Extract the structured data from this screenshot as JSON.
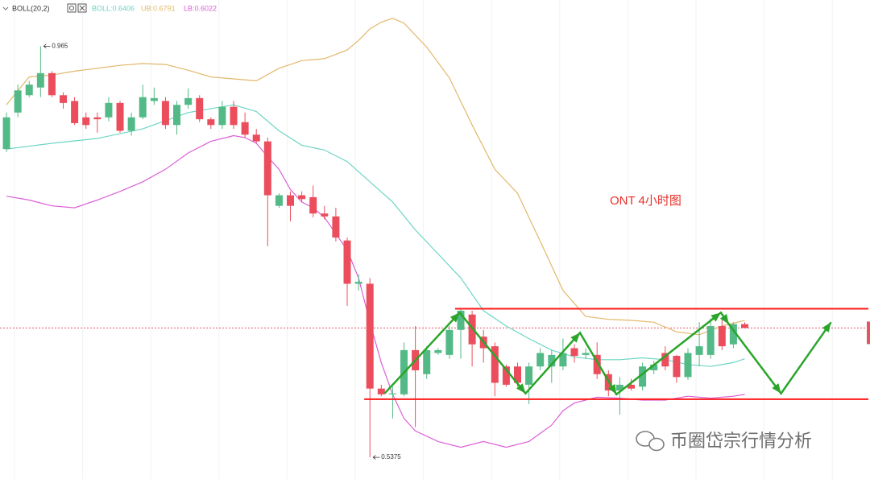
{
  "chart_data": {
    "type": "candlestick",
    "title": "ONT 4小时图",
    "indicator": "BOLL(20,2)",
    "watermark": "币圈岱宗行情分析",
    "xlim": [
      -0.57,
      76.03
    ],
    "ylim": [
      0.515,
      1.013
    ],
    "up_color": "#53b987",
    "down_color": "#eb4d5c",
    "open": [
      0.858,
      0.896,
      0.914,
      0.922,
      0.937,
      0.914,
      0.908,
      0.891,
      0.891,
      0.891,
      0.906,
      0.877,
      0.891,
      0.908,
      0.908,
      0.883,
      0.904,
      0.911,
      0.889,
      0.883,
      0.902,
      0.886,
      0.873,
      0.866,
      0.799,
      0.81,
      0.81,
      0.808,
      0.791,
      0.788,
      0.763,
      0.718,
      0.718,
      0.609,
      0.603,
      0.603,
      0.649,
      0.624,
      0.646,
      0.644,
      0.67,
      0.686,
      0.663,
      0.653,
      0.632,
      0.632,
      0.613,
      0.632,
      0.632,
      0.632,
      0.651,
      0.644,
      0.644,
      0.624,
      0.607,
      0.613,
      0.611,
      0.628,
      0.646,
      0.643,
      0.621,
      0.644,
      0.644,
      0.674,
      0.655,
      0.676
    ],
    "high": [
      0.896,
      0.925,
      0.929,
      0.965,
      0.939,
      0.917,
      0.912,
      0.896,
      0.896,
      0.912,
      0.908,
      0.896,
      0.925,
      0.922,
      0.912,
      0.908,
      0.921,
      0.914,
      0.891,
      0.908,
      0.908,
      0.896,
      0.879,
      0.87,
      0.812,
      0.814,
      0.814,
      0.82,
      0.799,
      0.797,
      0.766,
      0.728,
      0.724,
      0.613,
      0.611,
      0.657,
      0.674,
      0.653,
      0.651,
      0.674,
      0.693,
      0.69,
      0.67,
      0.657,
      0.634,
      0.636,
      0.636,
      0.651,
      0.649,
      0.661,
      0.655,
      0.651,
      0.657,
      0.628,
      0.621,
      0.619,
      0.636,
      0.638,
      0.653,
      0.644,
      0.651,
      0.678,
      0.682,
      0.682,
      0.678,
      0.678
    ],
    "low": [
      0.855,
      0.891,
      0.912,
      0.912,
      0.912,
      0.9,
      0.883,
      0.879,
      0.875,
      0.887,
      0.875,
      0.872,
      0.889,
      0.904,
      0.879,
      0.873,
      0.9,
      0.886,
      0.879,
      0.879,
      0.879,
      0.87,
      0.864,
      0.757,
      0.797,
      0.783,
      0.803,
      0.787,
      0.785,
      0.762,
      0.695,
      0.711,
      0.5375,
      0.601,
      0.578,
      0.601,
      0.569,
      0.619,
      0.644,
      0.64,
      0.64,
      0.632,
      0.636,
      0.601,
      0.611,
      0.611,
      0.593,
      0.628,
      0.615,
      0.628,
      0.636,
      0.64,
      0.619,
      0.601,
      0.582,
      0.607,
      0.607,
      0.624,
      0.628,
      0.615,
      0.618,
      0.632,
      0.64,
      0.649,
      0.651,
      0.672
    ],
    "close": [
      0.891,
      0.919,
      0.925,
      0.937,
      0.914,
      0.906,
      0.885,
      0.883,
      0.889,
      0.906,
      0.877,
      0.891,
      0.912,
      0.911,
      0.883,
      0.904,
      0.911,
      0.889,
      0.883,
      0.902,
      0.883,
      0.873,
      0.866,
      0.81,
      0.81,
      0.799,
      0.806,
      0.791,
      0.788,
      0.766,
      0.718,
      0.72,
      0.609,
      0.603,
      0.604,
      0.649,
      0.628,
      0.649,
      0.649,
      0.67,
      0.69,
      0.655,
      0.651,
      0.615,
      0.613,
      0.615,
      0.632,
      0.646,
      0.644,
      0.646,
      0.643,
      0.646,
      0.624,
      0.607,
      0.613,
      0.609,
      0.632,
      0.634,
      0.632,
      0.621,
      0.646,
      0.653,
      0.674,
      0.653,
      0.676,
      0.672
    ],
    "bands": [
      {
        "name": "BOLL:0.6406",
        "color": "#6dd5c4",
        "x": [
          0,
          4,
          8,
          12,
          16,
          20,
          22,
          24,
          26,
          28,
          30,
          32,
          34,
          36,
          38,
          40,
          42,
          44,
          46,
          48,
          50,
          52,
          54,
          56,
          58,
          60,
          62,
          64,
          65
        ],
        "values": [
          0.858,
          0.864,
          0.869,
          0.879,
          0.896,
          0.904,
          0.897,
          0.877,
          0.862,
          0.857,
          0.845,
          0.824,
          0.803,
          0.774,
          0.749,
          0.724,
          0.69,
          0.674,
          0.661,
          0.649,
          0.642,
          0.639,
          0.639,
          0.641,
          0.639,
          0.634,
          0.632,
          0.636,
          0.64
        ]
      },
      {
        "name": "UB:0.6791",
        "color": "#e2b86a",
        "x": [
          0,
          2,
          4,
          6,
          8,
          10,
          12,
          14,
          16,
          18,
          20,
          22,
          24,
          26,
          28,
          30,
          31,
          32,
          33,
          34,
          35,
          37,
          39,
          41,
          43,
          45,
          47,
          49,
          51,
          53,
          55,
          57,
          59,
          61,
          63,
          65
        ],
        "values": [
          0.904,
          0.933,
          0.935,
          0.939,
          0.942,
          0.945,
          0.947,
          0.946,
          0.94,
          0.933,
          0.931,
          0.929,
          0.942,
          0.95,
          0.952,
          0.961,
          0.971,
          0.983,
          0.99,
          0.994,
          0.989,
          0.964,
          0.932,
          0.883,
          0.837,
          0.812,
          0.762,
          0.711,
          0.684,
          0.681,
          0.68,
          0.678,
          0.668,
          0.665,
          0.674,
          0.68
        ]
      },
      {
        "name": "LB:0.6022",
        "color": "#db5fd6",
        "x": [
          0,
          2,
          4,
          6,
          8,
          10,
          12,
          14,
          16,
          18,
          20,
          21,
          22,
          23,
          24,
          25,
          26,
          27,
          28,
          29,
          30,
          31,
          32,
          33,
          34,
          35,
          36,
          38,
          40,
          42,
          44,
          46,
          48,
          49,
          50,
          52,
          54,
          56,
          58,
          60,
          62,
          64,
          65
        ],
        "values": [
          0.809,
          0.805,
          0.799,
          0.797,
          0.805,
          0.814,
          0.824,
          0.837,
          0.854,
          0.866,
          0.872,
          0.87,
          0.864,
          0.85,
          0.837,
          0.816,
          0.803,
          0.797,
          0.787,
          0.77,
          0.753,
          0.724,
          0.678,
          0.636,
          0.603,
          0.578,
          0.565,
          0.554,
          0.548,
          0.554,
          0.548,
          0.554,
          0.571,
          0.586,
          0.594,
          0.6,
          0.599,
          0.597,
          0.597,
          0.601,
          0.599,
          0.601,
          0.603
        ]
      }
    ],
    "levels": [
      {
        "value": 0.692,
        "start": 39.5,
        "color": "#ff1a1a"
      },
      {
        "value": 0.598,
        "start": 31.5,
        "color": "#ff1a1a"
      }
    ],
    "price_line": {
      "value": 0.672,
      "color": "#e25563"
    },
    "projection": {
      "color": "#2aa52a",
      "x": [
        33.3,
        39.9,
        45.7,
        50.5,
        53.7,
        62.9,
        63.6,
        68.2,
        72.6
      ],
      "values": [
        0.604,
        0.688,
        0.604,
        0.667,
        0.603,
        0.688,
        0.676,
        0.604,
        0.678
      ]
    }
  }
}
